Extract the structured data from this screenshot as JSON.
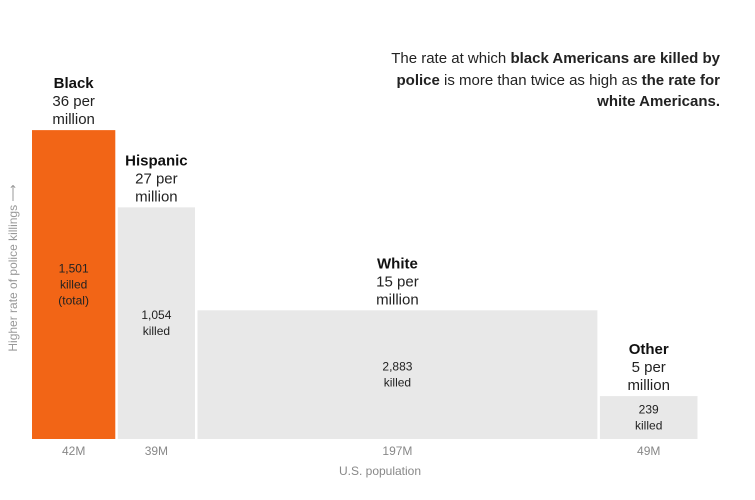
{
  "annotation": {
    "parts": [
      {
        "text": "The rate at which ",
        "bold": false
      },
      {
        "text": "black Americans are killed by police",
        "bold": true
      },
      {
        "text": " is more than twice as high as ",
        "bold": false
      },
      {
        "text": "the rate for white Americans.",
        "bold": true
      }
    ]
  },
  "chart_data": {
    "type": "bar",
    "subtype": "marimekko",
    "xlabel": "U.S. population",
    "ylabel": "Higher rate of police killings ⟶",
    "categories": [
      "Black",
      "Hispanic",
      "White",
      "Other"
    ],
    "series": [
      {
        "name": "Rate per million",
        "values": [
          36,
          27,
          15,
          5
        ]
      },
      {
        "name": "Population (M)",
        "values": [
          42,
          39,
          197,
          49
        ]
      },
      {
        "name": "Killed",
        "values": [
          1501,
          1054,
          2883,
          239
        ]
      }
    ],
    "rate_labels": [
      "36 per",
      "27 per",
      "15 per",
      "5 per"
    ],
    "rate_unit": "million",
    "killed_labels": [
      "1,501",
      "1,054",
      "2,883",
      "239"
    ],
    "killed_word": "killed",
    "total_note": "(total)",
    "population_labels": [
      "42M",
      "39M",
      "197M",
      "49M"
    ],
    "colors": [
      "#f26516",
      "#e8e8e8",
      "#e8e8e8",
      "#e8e8e8"
    ],
    "highlight_color": "#f26516",
    "muted_color": "#e8e8e8"
  }
}
